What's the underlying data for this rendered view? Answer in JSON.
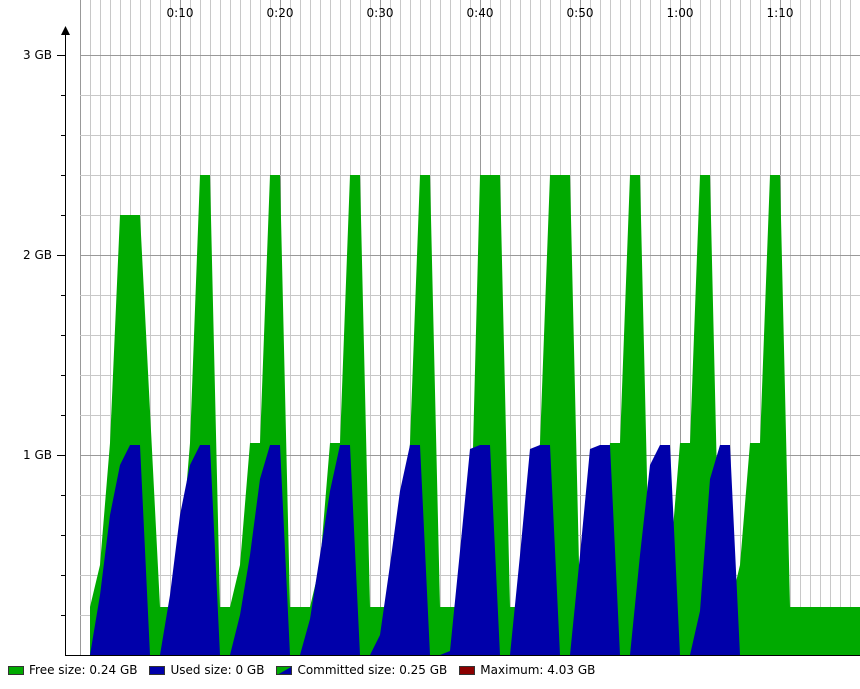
{
  "chart_data": {
    "type": "area",
    "title": "",
    "xlabel": "",
    "ylabel": "",
    "x_unit": "seconds",
    "x_ticks": [
      "0:10",
      "0:20",
      "0:30",
      "0:40",
      "0:50",
      "1:00",
      "1:10"
    ],
    "y_ticks": [
      "1 GB",
      "2 GB",
      "3 GB"
    ],
    "xlim": [
      0,
      78
    ],
    "ylim": [
      0,
      3.0
    ],
    "grid": true,
    "legend_position": "bottom",
    "colors": {
      "free": "#00aa00",
      "used": "#0000aa",
      "maximum": "#8b0000",
      "grid_major": "#999999",
      "grid_minor": "#c8c8c8"
    },
    "series": [
      {
        "name": "Committed",
        "x": [
          1,
          2,
          3,
          4,
          6,
          8,
          9,
          10,
          11,
          12,
          13,
          14,
          15,
          16,
          17,
          18,
          19,
          20,
          21,
          22,
          23,
          24,
          25,
          26,
          27,
          28,
          29,
          30,
          31,
          32,
          33,
          34,
          35,
          36,
          37,
          38,
          39,
          40,
          42,
          43,
          44,
          45,
          46,
          47,
          49,
          50,
          51,
          52,
          53,
          54,
          55,
          56,
          57,
          58,
          59,
          60,
          61,
          62,
          63,
          64,
          65,
          66,
          67,
          68,
          69,
          70,
          71,
          72,
          73,
          78
        ],
        "y": [
          0.24,
          0.45,
          1.06,
          2.2,
          2.2,
          0.24,
          0.24,
          0.45,
          1.06,
          2.4,
          2.4,
          0.24,
          0.24,
          0.45,
          1.06,
          1.06,
          2.4,
          2.4,
          0.24,
          0.24,
          0.24,
          0.45,
          1.06,
          1.06,
          2.4,
          2.4,
          0.24,
          0.24,
          0.24,
          0.45,
          1.06,
          2.4,
          2.4,
          0.24,
          0.24,
          0.24,
          0.45,
          2.4,
          2.4,
          0.24,
          0.24,
          0.45,
          1.06,
          2.4,
          2.4,
          0.24,
          0.24,
          0.45,
          1.06,
          1.06,
          2.4,
          2.4,
          0.24,
          0.24,
          0.45,
          1.06,
          1.06,
          2.4,
          2.4,
          0.24,
          0.24,
          0.45,
          1.06,
          1.06,
          2.4,
          2.4,
          0.24,
          0.24,
          0.24,
          0.24
        ]
      },
      {
        "name": "Used",
        "x": [
          1,
          2,
          3,
          4,
          5,
          6,
          7,
          8,
          9,
          10,
          11,
          12,
          13,
          14,
          15,
          16,
          17,
          18,
          19,
          20,
          21,
          22,
          23,
          24,
          25,
          26,
          27,
          28,
          29,
          30,
          31,
          32,
          33,
          34,
          35,
          36,
          37,
          38,
          39,
          40,
          41,
          42,
          43,
          44,
          45,
          46,
          47,
          48,
          49,
          50,
          51,
          52,
          53,
          54,
          55,
          56,
          57,
          58,
          59,
          60,
          61,
          62,
          63,
          64,
          65,
          66,
          67,
          68,
          69,
          70,
          71,
          72,
          73,
          78
        ],
        "y": [
          0.0,
          0.3,
          0.7,
          0.95,
          1.05,
          1.05,
          0.0,
          0.0,
          0.3,
          0.7,
          0.95,
          1.05,
          1.05,
          0.0,
          0.0,
          0.2,
          0.5,
          0.88,
          1.05,
          1.05,
          0.0,
          0.0,
          0.18,
          0.5,
          0.82,
          1.05,
          1.05,
          0.0,
          0.0,
          0.1,
          0.45,
          0.82,
          1.05,
          1.05,
          0.0,
          0.0,
          0.02,
          0.52,
          1.03,
          1.05,
          1.05,
          0.0,
          0.0,
          0.5,
          1.03,
          1.05,
          1.05,
          0.0,
          0.0,
          0.5,
          1.03,
          1.05,
          1.05,
          0.0,
          0.0,
          0.5,
          0.95,
          1.05,
          1.05,
          0.0,
          0.0,
          0.22,
          0.88,
          1.05,
          1.05,
          0.0,
          0.0,
          0.0,
          0.0,
          0.0,
          0.0,
          0.0,
          0.0,
          0.0
        ]
      }
    ]
  },
  "legend": {
    "items": [
      {
        "key": "free",
        "label": "Free size: 0.24 GB"
      },
      {
        "key": "used",
        "label": "Used size: 0 GB"
      },
      {
        "key": "committed",
        "label": "Committed size: 0.25 GB"
      },
      {
        "key": "maximum",
        "label": "Maximum: 4.03 GB"
      }
    ]
  }
}
